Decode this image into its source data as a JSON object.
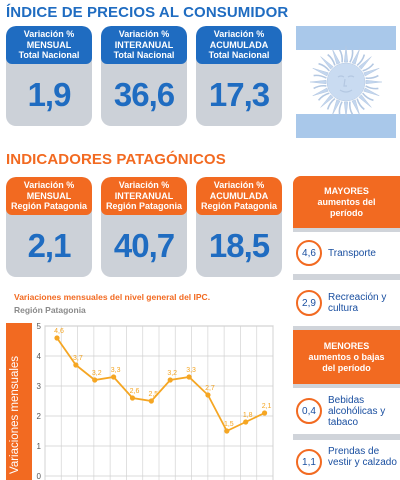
{
  "header": {
    "title": "ÍNDICE DE PRECIOS AL CONSUMIDOR"
  },
  "national_cards": [
    {
      "line1": "Variación %",
      "line2": "MENSUAL",
      "line3": "Total Nacional",
      "value": "1,9"
    },
    {
      "line1": "Variación %",
      "line2": "INTERANUAL",
      "line3": "Total Nacional",
      "value": "36,6"
    },
    {
      "line1": "Variación %",
      "line2": "ACUMULADA",
      "line3": "Total Nacional",
      "value": "17,3"
    }
  ],
  "section2": {
    "title": "INDICADORES PATAGÓNICOS"
  },
  "region_cards": [
    {
      "line1": "Variación %",
      "line2": "MENSUAL",
      "line3": "Región Patagonia",
      "value": "2,1"
    },
    {
      "line1": "Variación %",
      "line2": "INTERANUAL",
      "line3": "Región Patagonia",
      "value": "40,7"
    },
    {
      "line1": "Variación %",
      "line2": "ACUMULADA",
      "line3": "Región Patagonia",
      "value": "18,5"
    }
  ],
  "sidebar": {
    "top_header": {
      "line1": "MAYORES",
      "line2": "aumentos del",
      "line3": "período"
    },
    "top_items": [
      {
        "value": "4,6",
        "label": "Transporte"
      },
      {
        "value": "2,9",
        "label": "Recreación y cultura"
      }
    ],
    "bottom_header": {
      "line1": "MENORES",
      "line2": "aumentos o bajas",
      "line3": "del período"
    },
    "bottom_items": [
      {
        "value": "0,4",
        "label": "Bebidas alcohólicas y tabaco"
      },
      {
        "value": "1,1",
        "label": "Prendas de vestir y calzado"
      }
    ]
  },
  "colors": {
    "blue": "#1f6cc1",
    "orange": "#f26a21",
    "gray": "#ccd1d8",
    "line": "#f5a623"
  },
  "chart_data": {
    "type": "line",
    "title": "Variaciones mensuales del nivel general del IPC.",
    "subtitle": "Región Patagonia",
    "ylabel": "Variaciones mensuales",
    "ylim": [
      0,
      5
    ],
    "yticks": [
      0,
      1,
      2,
      3,
      4,
      5
    ],
    "grid": true,
    "series": [
      {
        "values": [
          4.6,
          3.7,
          3.2,
          3.3,
          2.6,
          2.5,
          3.2,
          3.3,
          2.7,
          1.5,
          1.8,
          2.1
        ],
        "labels": [
          "4,6",
          "3,7",
          "3,2",
          "3,3",
          "2,6",
          "2,5",
          "3,2",
          "3,3",
          "2,7",
          "1,5",
          "1,8",
          "2,1"
        ]
      }
    ]
  }
}
